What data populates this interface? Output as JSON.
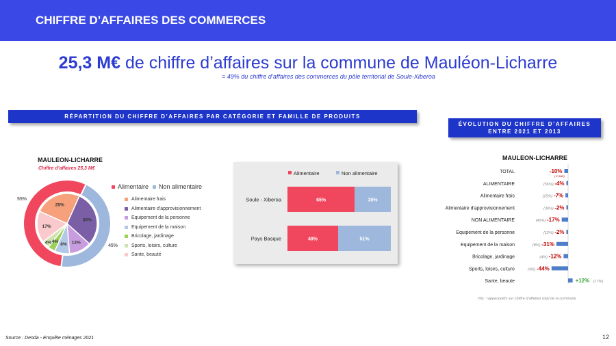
{
  "header": {
    "title": "CHIFFRE D’AFFAIRES DES COMMERCES"
  },
  "headline": {
    "value": "25,3 M€",
    "rest": " de chiffre d’affaires sur la commune de Mauléon-Licharre"
  },
  "subline": "= 49% du chiffre d’affaires des commerces du pôle territorial de Soule-Xiberoa",
  "banner_left": "RÉPARTITION DU CHIFFRE D’AFFAIRES PAR CATÉGORIE ET FAMILLE DE PRODUITS",
  "banner_right": {
    "line1": "ÉVOLUTION DU CHIFFRE D’AFFAIRES",
    "line2": "ENTRE 2021 ET 2013"
  },
  "source": "Source : Denda - Enquête ménages 2021",
  "page_number": "12",
  "colors": {
    "brand": "#3a49e6",
    "banner": "#1e35c9",
    "alimentaire": "#f0475e",
    "non_alimentaire": "#9db8dc",
    "frais": "#f6a07c",
    "approvisionnement": "#7b5fa6",
    "personne": "#c89de0",
    "maison": "#b3c7e6",
    "bricolage": "#9bd05a",
    "sports": "#cfe3b0",
    "sante": "#f9c9cc",
    "negative": "#c00000",
    "positive": "#3aa13a",
    "evo_bar": "#4f7ec9"
  },
  "chart_data": [
    {
      "type": "pie",
      "title": "MAULEON-LICHARRE",
      "subtitle": "Chiffre d’affaires 25,3 M€",
      "outer": {
        "legend": [
          "Alimentaire",
          "Non alimentaire"
        ],
        "slices": [
          {
            "name": "Alimentaire",
            "value": 55,
            "label": "55%",
            "color": "#f0475e"
          },
          {
            "name": "Non alimentaire",
            "value": 45,
            "label": "45%",
            "color": "#9db8dc"
          }
        ]
      },
      "inner": {
        "slices": [
          {
            "name": "Alimentaire frais",
            "value": 25,
            "label": "25%",
            "color": "#f6a07c"
          },
          {
            "name": "Alimentaire d'approvisionnement",
            "value": 30,
            "label": "30%",
            "color": "#7b5fa6"
          },
          {
            "name": "Equipement de la personne",
            "value": 12,
            "label": "12%",
            "color": "#c89de0"
          },
          {
            "name": "Equipement de la maison",
            "value": 8,
            "label": "8%",
            "color": "#b3c7e6"
          },
          {
            "name": "Bricolage, jardinage",
            "value": 4,
            "label": "4%",
            "color": "#9bd05a"
          },
          {
            "name": "Sports, loisirs, culture",
            "value": 4,
            "label": "4%",
            "color": "#cfe3b0"
          },
          {
            "name": "Sante, beauté",
            "value": 17,
            "label": "17%",
            "color": "#f9c9cc"
          }
        ]
      }
    },
    {
      "type": "bar",
      "stacked": true,
      "orientation": "horizontal",
      "categories": [
        "Soule - Xiberoa",
        "Pays Basque"
      ],
      "series": [
        {
          "name": "Alimentaire",
          "values": [
            65,
            49
          ],
          "labels": [
            "65%",
            "49%"
          ],
          "color": "#f0475e"
        },
        {
          "name": "Non alimentaire",
          "values": [
            35,
            51
          ],
          "labels": [
            "35%",
            "51%"
          ],
          "color": "#9db8dc"
        }
      ]
    },
    {
      "type": "bar",
      "orientation": "horizontal",
      "title": "MAULEON-LICHARRE",
      "note": "(-2,5M€)",
      "footnote": "(%) : rappel poids sur chiffre d’affaires total de la commune",
      "rows": [
        {
          "label": "TOTAL",
          "value": -10,
          "text": "-10%",
          "weight": ""
        },
        {
          "label": "ALIMENTAIRE",
          "value": -4,
          "text": "-4%",
          "weight": "(55%)"
        },
        {
          "label": "Alimentaire frais",
          "value": -7,
          "text": "-7%",
          "weight": "(25%)"
        },
        {
          "label": "Alimentaire d'approvisionnement",
          "value": -2,
          "text": "-2%",
          "weight": "(30%)"
        },
        {
          "label": "NON ALIMENTAIRE",
          "value": -17,
          "text": "-17%",
          "weight": "(45%)"
        },
        {
          "label": "Equipement de la personne",
          "value": -2,
          "text": "-2%",
          "weight": "(12%)"
        },
        {
          "label": "Equipement de la maison",
          "value": -31,
          "text": "-31%",
          "weight": "(8%)"
        },
        {
          "label": "Bricolage, jardinage",
          "value": -12,
          "text": "-12%",
          "weight": "(4%)"
        },
        {
          "label": "Sports, loisirs, culture",
          "value": -44,
          "text": "-44%",
          "weight": "(4%)"
        },
        {
          "label": "Sante, beaute",
          "value": 12,
          "text": "+12%",
          "weight": "(17%)"
        }
      ]
    }
  ]
}
